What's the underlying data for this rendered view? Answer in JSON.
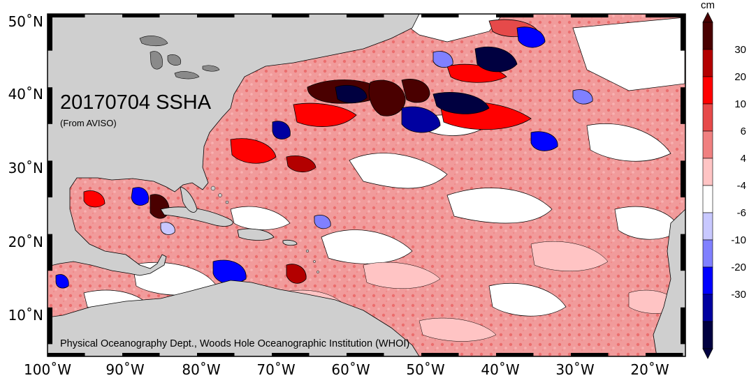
{
  "map": {
    "title": "20170704 SSHA",
    "source_note": "(From AVISO)",
    "credit": "Physical Oceanography Dept., Woods Hole Oceanographic Institution (WHOI)",
    "lat_labels": [
      "50˚N",
      "40˚N",
      "30˚N",
      "20˚N",
      "10˚N"
    ],
    "lon_labels": [
      "100˚W",
      "90˚W",
      "80˚W",
      "70˚W",
      "60˚W",
      "50˚W",
      "40˚W",
      "30˚W",
      "20˚W"
    ],
    "land_color": "#cfcfcf",
    "ocean_base_color": "#f19b9b"
  },
  "colorbar": {
    "unit": "cm",
    "tick_labels": [
      "30",
      "20",
      "10",
      "6",
      "4",
      "-4",
      "-6",
      "-10",
      "-20",
      "-30"
    ],
    "colors": [
      "#4a0000",
      "#b30000",
      "#ff0000",
      "#e64a4a",
      "#f08080",
      "#ffc4c4",
      "#ffffff",
      "#c8c8ff",
      "#8080ff",
      "#0000ff",
      "#0000a0",
      "#000040"
    ]
  }
}
